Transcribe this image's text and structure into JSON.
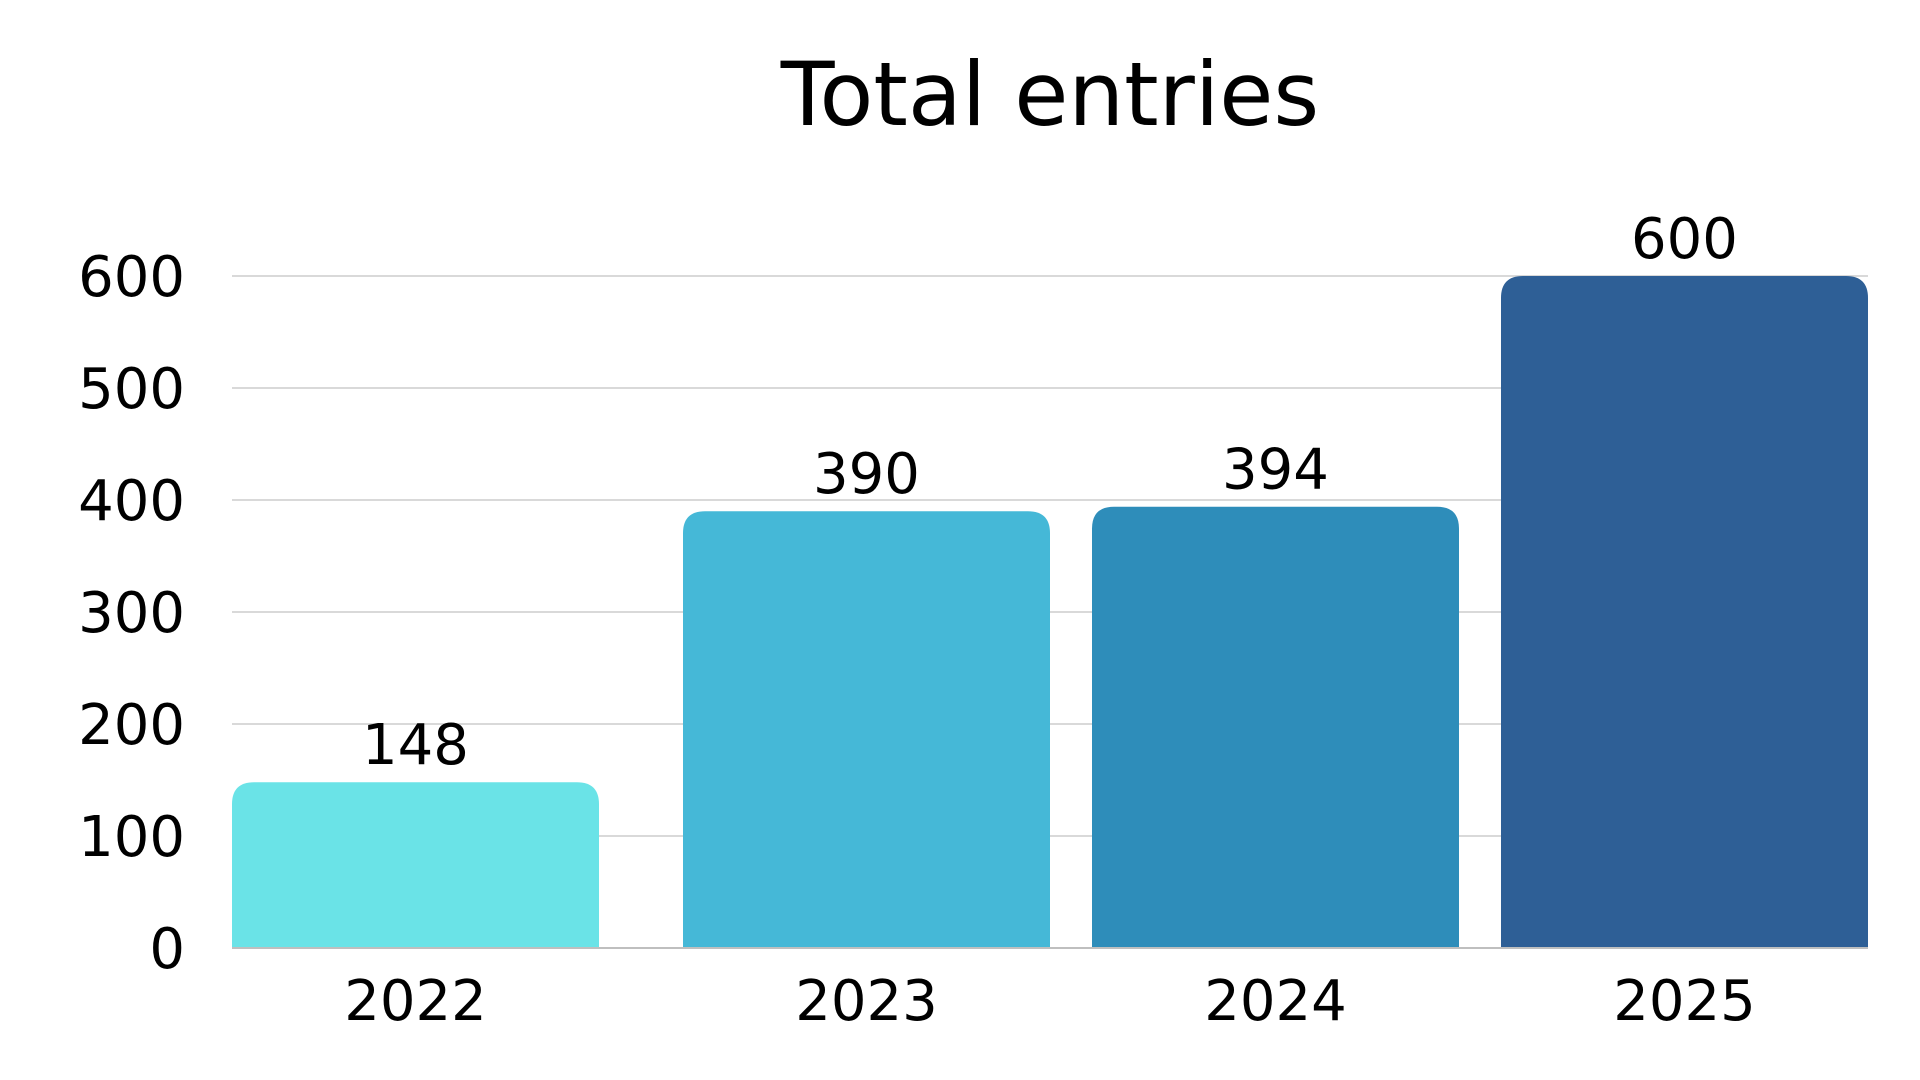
{
  "chart_data": {
    "type": "bar",
    "title": "Total entries",
    "xlabel": "",
    "ylabel": "",
    "categories": [
      "2022",
      "2023",
      "2024",
      "2025"
    ],
    "values": [
      148,
      390,
      394,
      600
    ],
    "data_labels": [
      "148",
      "390",
      "394",
      "600"
    ],
    "ylim": [
      0,
      600
    ],
    "yticks": [
      0,
      100,
      200,
      300,
      400,
      500,
      600
    ],
    "ytick_labels": [
      "0",
      "100",
      "200",
      "300",
      "400",
      "500",
      "600"
    ],
    "grid": true,
    "legend": "none",
    "bar_colors": [
      "#6ae3e7",
      "#45b8d7",
      "#2e8dba",
      "#2e5f96"
    ]
  }
}
